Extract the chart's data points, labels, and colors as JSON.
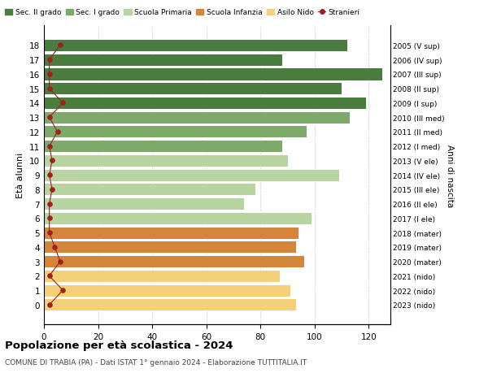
{
  "ages": [
    18,
    17,
    16,
    15,
    14,
    13,
    12,
    11,
    10,
    9,
    8,
    7,
    6,
    5,
    4,
    3,
    2,
    1,
    0
  ],
  "years_labels": [
    "2005 (V sup)",
    "2006 (IV sup)",
    "2007 (III sup)",
    "2008 (II sup)",
    "2009 (I sup)",
    "2010 (III med)",
    "2011 (II med)",
    "2012 (I med)",
    "2013 (V ele)",
    "2014 (IV ele)",
    "2015 (III ele)",
    "2016 (II ele)",
    "2017 (I ele)",
    "2018 (mater)",
    "2019 (mater)",
    "2020 (mater)",
    "2021 (nido)",
    "2022 (nido)",
    "2023 (nido)"
  ],
  "bar_values": [
    112,
    88,
    125,
    110,
    119,
    113,
    97,
    88,
    90,
    109,
    78,
    74,
    99,
    94,
    93,
    96,
    87,
    91,
    93
  ],
  "stranieri_values": [
    6,
    2,
    2,
    2,
    7,
    2,
    5,
    2,
    3,
    2,
    3,
    2,
    2,
    2,
    4,
    6,
    2,
    7,
    2
  ],
  "bar_colors": [
    "#4a7c3f",
    "#4a7c3f",
    "#4a7c3f",
    "#4a7c3f",
    "#4a7c3f",
    "#7daa6b",
    "#7daa6b",
    "#7daa6b",
    "#b8d4a0",
    "#b8d4a0",
    "#b8d4a0",
    "#b8d4a0",
    "#b8d4a0",
    "#d4853a",
    "#d4853a",
    "#d4853a",
    "#f5d07a",
    "#f5d07a",
    "#f5d07a"
  ],
  "color_sec2": "#4a7c3f",
  "color_sec1": "#7daa6b",
  "color_primaria": "#b8d4a0",
  "color_infanzia": "#d4853a",
  "color_nido": "#f5d07a",
  "color_stranieri": "#a02020",
  "title": "Popolazione per età scolastica - 2024",
  "subtitle": "COMUNE DI TRABIA (PA) - Dati ISTAT 1° gennaio 2024 - Elaborazione TUTTITALIA.IT",
  "xlabel_right": "Anni di nascita",
  "ylabel": "Età alunni",
  "xlim": [
    0,
    128
  ],
  "xticks": [
    0,
    20,
    40,
    60,
    80,
    100,
    120
  ],
  "bg_color": "#ffffff",
  "grid_color": "#cccccc"
}
